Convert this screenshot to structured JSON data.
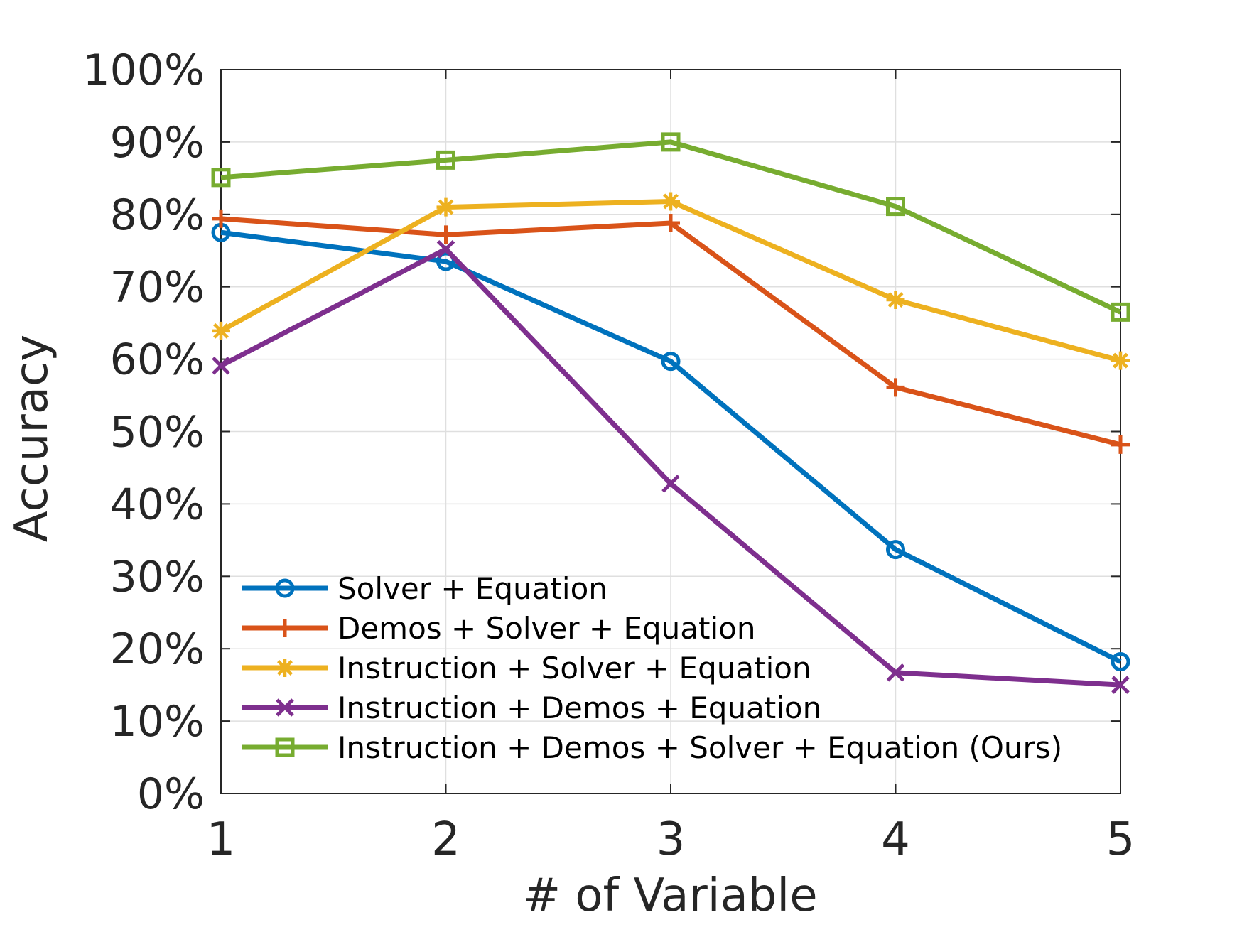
{
  "chart_data": {
    "type": "line",
    "title": "",
    "xlabel": "# of Variable",
    "ylabel": "Accuracy",
    "x": [
      1,
      2,
      3,
      4,
      5
    ],
    "xlim": [
      1,
      5
    ],
    "ylim": [
      0,
      100
    ],
    "xticks": [
      "1",
      "2",
      "3",
      "4",
      "5"
    ],
    "yticks": [
      "0%",
      "10%",
      "20%",
      "30%",
      "40%",
      "50%",
      "60%",
      "70%",
      "80%",
      "90%",
      "100%"
    ],
    "grid": true,
    "legend_position": "bottom-left",
    "series": [
      {
        "name": "Solver + Equation",
        "values": [
          77.5,
          73.5,
          59.7,
          33.7,
          18.2
        ],
        "color": "#0072BD",
        "marker": "circle"
      },
      {
        "name": "Demos + Solver + Equation",
        "values": [
          79.4,
          77.2,
          78.8,
          56.1,
          48.2
        ],
        "color": "#D95319",
        "marker": "plus"
      },
      {
        "name": "Instruction + Solver + Equation",
        "values": [
          63.9,
          81.0,
          81.8,
          68.2,
          59.8
        ],
        "color": "#EDB120",
        "marker": "star"
      },
      {
        "name": "Instruction + Demos + Equation",
        "values": [
          59.1,
          75.2,
          42.8,
          16.7,
          15.0
        ],
        "color": "#7E2F8E",
        "marker": "x"
      },
      {
        "name": "Instruction + Demos + Solver + Equation (Ours)",
        "values": [
          85.1,
          87.5,
          90.0,
          81.1,
          66.5
        ],
        "color": "#77AC30",
        "marker": "square"
      }
    ]
  }
}
